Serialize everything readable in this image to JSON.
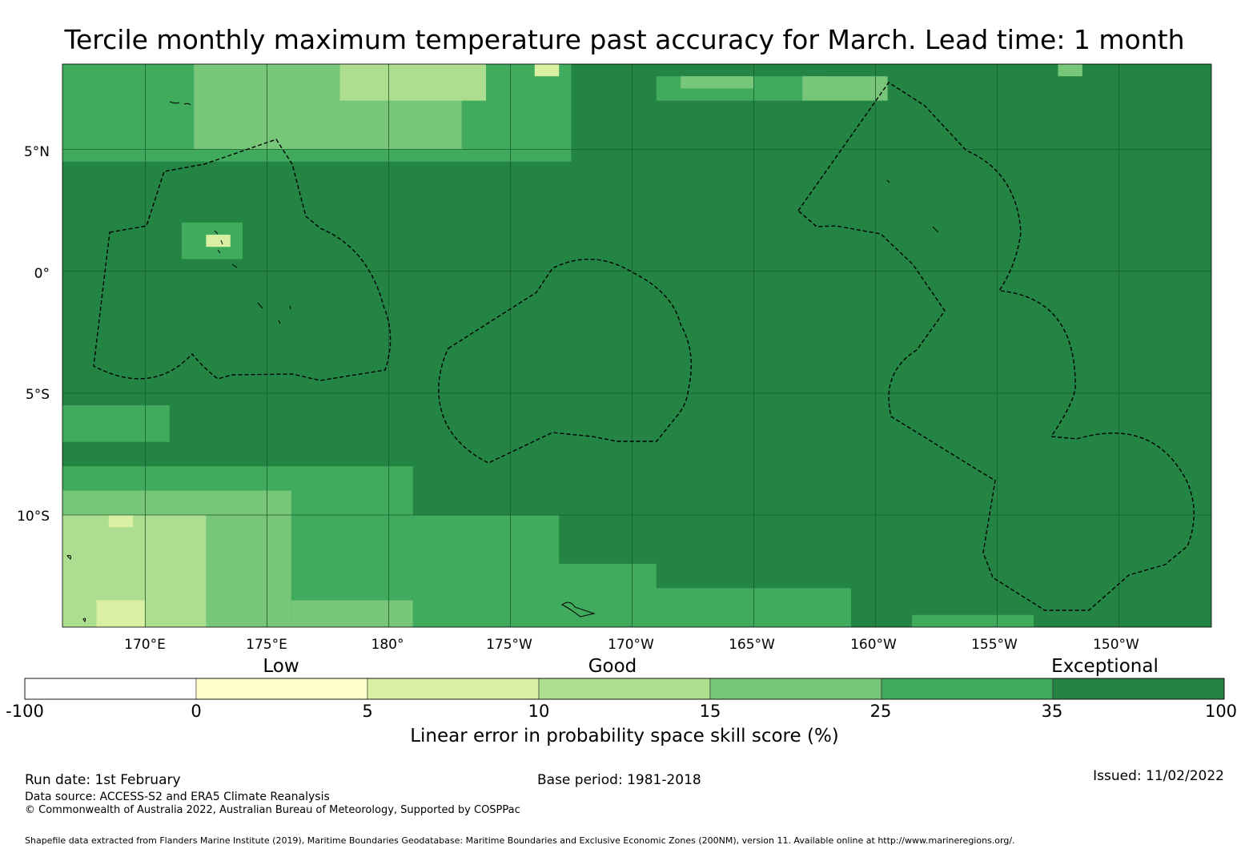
{
  "title": "Tercile monthly maximum temperature past accuracy for March. Lead time: 1 month",
  "map": {
    "lon_range": [
      166.6,
      213.8
    ],
    "lat_range": [
      -14.6,
      8.5
    ],
    "lat_ticks": [
      {
        "value": 5,
        "label": "5°N"
      },
      {
        "value": 0,
        "label": "0°"
      },
      {
        "value": -5,
        "label": "5°S"
      },
      {
        "value": -10,
        "label": "10°S"
      }
    ],
    "lon_ticks": [
      {
        "value": 170,
        "label": "170°E"
      },
      {
        "value": 175,
        "label": "175°E"
      },
      {
        "value": 180,
        "label": "180°"
      },
      {
        "value": 185,
        "label": "175°W"
      },
      {
        "value": 190,
        "label": "170°W"
      },
      {
        "value": 195,
        "label": "165°W"
      },
      {
        "value": 200,
        "label": "160°W"
      },
      {
        "value": 205,
        "label": "155°W"
      },
      {
        "value": 210,
        "label": "150°W"
      }
    ],
    "background_class": 6,
    "skill_regions": [
      {
        "lon": [
          166.6,
          187.5
        ],
        "lat": [
          4.5,
          8.5
        ],
        "class": 5
      },
      {
        "lon": [
          172.0,
          183.0
        ],
        "lat": [
          5.0,
          8.5
        ],
        "class": 4
      },
      {
        "lon": [
          178.0,
          184.0
        ],
        "lat": [
          7.0,
          8.5
        ],
        "class": 3
      },
      {
        "lon": [
          186.0,
          187.0
        ],
        "lat": [
          8.0,
          8.5
        ],
        "class": 2
      },
      {
        "lon": [
          191.0,
          198.0
        ],
        "lat": [
          7.0,
          8.0
        ],
        "class": 5
      },
      {
        "lon": [
          192.0,
          195.0
        ],
        "lat": [
          7.5,
          8.0
        ],
        "class": 4
      },
      {
        "lon": [
          197.0,
          200.5
        ],
        "lat": [
          7.0,
          8.0
        ],
        "class": 4
      },
      {
        "lon": [
          207.5,
          208.5
        ],
        "lat": [
          8.0,
          8.5
        ],
        "class": 4
      },
      {
        "lon": [
          171.5,
          174.0
        ],
        "lat": [
          0.5,
          2.0
        ],
        "class": 5
      },
      {
        "lon": [
          172.5,
          173.5
        ],
        "lat": [
          1.0,
          1.5
        ],
        "class": 2
      },
      {
        "lon": [
          166.6,
          181.0
        ],
        "lat": [
          -14.6,
          -8.0
        ],
        "class": 5
      },
      {
        "lon": [
          166.6,
          171.0
        ],
        "lat": [
          -7.0,
          -5.5
        ],
        "class": 5
      },
      {
        "lon": [
          166.6,
          176.0
        ],
        "lat": [
          -14.6,
          -9.0
        ],
        "class": 4
      },
      {
        "lon": [
          166.6,
          172.5
        ],
        "lat": [
          -14.6,
          -10.0
        ],
        "class": 3
      },
      {
        "lon": [
          168.0,
          170.0
        ],
        "lat": [
          -14.6,
          -13.5
        ],
        "class": 2
      },
      {
        "lon": [
          168.5,
          169.5
        ],
        "lat": [
          -10.5,
          -10.0
        ],
        "class": 2
      },
      {
        "lon": [
          176.0,
          181.0
        ],
        "lat": [
          -14.6,
          -13.5
        ],
        "class": 4
      },
      {
        "lon": [
          181.0,
          191.0
        ],
        "lat": [
          -14.6,
          -12.0
        ],
        "class": 5
      },
      {
        "lon": [
          181.0,
          187.0
        ],
        "lat": [
          -14.6,
          -10.0
        ],
        "class": 5
      },
      {
        "lon": [
          190.5,
          199.0
        ],
        "lat": [
          -14.6,
          -13.0
        ],
        "class": 5
      },
      {
        "lon": [
          201.5,
          206.5
        ],
        "lat": [
          -14.6,
          -14.1
        ],
        "class": 5
      }
    ],
    "eez_note": "Dashed outlines mark Exclusive Economic Zones"
  },
  "colorbar": {
    "categories": [
      {
        "label": "Low",
        "at_boundary": 1.5
      },
      {
        "label": "Good",
        "at_boundary": 3.5
      },
      {
        "label": "Exceptional",
        "at_boundary": 6.3
      }
    ],
    "boundaries": [
      "-100",
      "0",
      "5",
      "10",
      "15",
      "25",
      "35",
      "100"
    ],
    "colors": [
      "#ffffff",
      "#ffffcc",
      "#d9f0a3",
      "#addd8e",
      "#78c679",
      "#41ab5d",
      "#238443"
    ],
    "label": "Linear error in probability space skill score (%)"
  },
  "footer": {
    "run_date": "Run date: 1st February",
    "base_period": "Base period: 1981-2018",
    "issued": "Issued: 11/02/2022",
    "data_source": "Data source: ACCESS-S2 and ERA5 Climate Reanalysis",
    "copyright": "© Commonwealth of Australia 2022, Australian Bureau of Meteorology, Supported by COSPPac",
    "shapefile": "Shapefile data extracted from Flanders Marine Institute (2019), Maritime Boundaries Geodatabase: Maritime Boundaries and Exclusive Economic Zones (200NM), version 11. Available online at http://www.marineregions.org/."
  }
}
